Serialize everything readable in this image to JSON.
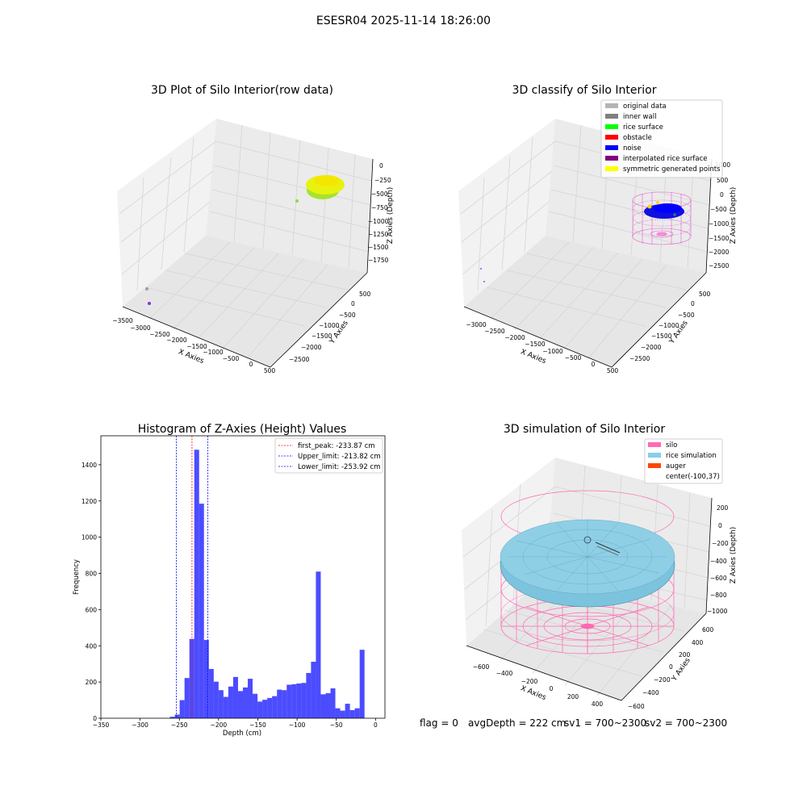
{
  "suptitle": "ESESR04 2025-11-14 18:26:00",
  "panel1": {
    "title": "3D Plot of Silo Interior(row data)",
    "xlabel": "X Axies",
    "ylabel": "Y Axies",
    "zlabel": "Z Axies (Depth)",
    "xticks": [
      "−3500",
      "−3000",
      "−2500",
      "−2000",
      "−1500",
      "−1000",
      "−500",
      "0",
      "500"
    ],
    "yticks": [
      "500",
      "0",
      "−500",
      "−1000",
      "−1500",
      "−2000",
      "−2500"
    ],
    "zticks": [
      "0",
      "−250",
      "−500",
      "−750",
      "−1000",
      "−1250",
      "−1500",
      "−1750"
    ]
  },
  "panel2": {
    "title": "3D classify of Silo Interior",
    "xlabel": "X Axies",
    "ylabel": "Y Axies",
    "zlabel": "Z Axies (Depth)",
    "xticks": [
      "−3000",
      "−2500",
      "−2000",
      "−1500",
      "−1000",
      "−500",
      "0",
      "500"
    ],
    "yticks": [
      "500",
      "0",
      "−500",
      "−1000",
      "−1500",
      "−2000",
      "−2500"
    ],
    "zticks": [
      "1000",
      "500",
      "0",
      "−500",
      "−1000",
      "−1500",
      "−2000",
      "−2500"
    ],
    "legend": [
      {
        "label": "original data",
        "color": "#b4b4b4"
      },
      {
        "label": "inner wall",
        "color": "#808080"
      },
      {
        "label": "rice surface",
        "color": "#00ff00"
      },
      {
        "label": "obstacle",
        "color": "#ff0000"
      },
      {
        "label": "noise",
        "color": "#0000ff"
      },
      {
        "label": "interpolated rice surface",
        "color": "#800080"
      },
      {
        "label": "symmetric generated points",
        "color": "#ffff00"
      }
    ]
  },
  "panel3": {
    "chart_data": {
      "type": "bar",
      "title": "Histogram of Z-Axies (Height) Values",
      "xlabel": "Depth (cm)",
      "ylabel": "Frequency",
      "xlim": [
        -350,
        12
      ],
      "ylim": [
        0,
        1560
      ],
      "xticks": [
        -350,
        -300,
        -250,
        -200,
        -150,
        -100,
        -50,
        0
      ],
      "yticks": [
        0,
        200,
        400,
        600,
        800,
        1000,
        1200,
        1400
      ],
      "bin_width": 6.2,
      "bins": [
        {
          "x": -262,
          "count": 8
        },
        {
          "x": -255.8,
          "count": 20
        },
        {
          "x": -249.6,
          "count": 100
        },
        {
          "x": -243.4,
          "count": 222
        },
        {
          "x": -237.2,
          "count": 438
        },
        {
          "x": -231.0,
          "count": 1483
        },
        {
          "x": -224.8,
          "count": 1185
        },
        {
          "x": -218.6,
          "count": 432
        },
        {
          "x": -212.4,
          "count": 272
        },
        {
          "x": -206.2,
          "count": 202
        },
        {
          "x": -200.0,
          "count": 155
        },
        {
          "x": -193.8,
          "count": 118
        },
        {
          "x": -187.6,
          "count": 175
        },
        {
          "x": -181.4,
          "count": 228
        },
        {
          "x": -175.2,
          "count": 150
        },
        {
          "x": -169.0,
          "count": 170
        },
        {
          "x": -162.8,
          "count": 218
        },
        {
          "x": -156.6,
          "count": 135
        },
        {
          "x": -150.4,
          "count": 92
        },
        {
          "x": -144.2,
          "count": 102
        },
        {
          "x": -138.0,
          "count": 112
        },
        {
          "x": -131.8,
          "count": 122
        },
        {
          "x": -125.6,
          "count": 158
        },
        {
          "x": -119.4,
          "count": 155
        },
        {
          "x": -113.2,
          "count": 185
        },
        {
          "x": -107.0,
          "count": 188
        },
        {
          "x": -100.8,
          "count": 192
        },
        {
          "x": -94.6,
          "count": 195
        },
        {
          "x": -88.4,
          "count": 250
        },
        {
          "x": -82.2,
          "count": 312
        },
        {
          "x": -76.0,
          "count": 810
        },
        {
          "x": -69.8,
          "count": 132
        },
        {
          "x": -63.6,
          "count": 138
        },
        {
          "x": -57.4,
          "count": 165
        },
        {
          "x": -51.2,
          "count": 55
        },
        {
          "x": -45.0,
          "count": 42
        },
        {
          "x": -38.8,
          "count": 80
        },
        {
          "x": -32.6,
          "count": 45
        },
        {
          "x": -26.4,
          "count": 55
        },
        {
          "x": -20.2,
          "count": 378
        }
      ],
      "bar_color": "#0000ff",
      "lines": [
        {
          "value": -233.87,
          "label": "first_peak: -233.87 cm",
          "color": "#ff0000"
        },
        {
          "value": -213.82,
          "label": "Upper_limit: -213.82 cm",
          "color": "#0000ff"
        },
        {
          "value": -253.92,
          "label": "Lower_limit: -253.92 cm",
          "color": "#0000ff"
        }
      ],
      "legend_position": "top-right"
    }
  },
  "panel4": {
    "title": "3D simulation of Silo Interior",
    "xlabel": "X Axies",
    "ylabel": "Y Axies",
    "zlabel": "Z Axies (Depth)",
    "xticks": [
      "−600",
      "−400",
      "−200",
      "0",
      "200",
      "400"
    ],
    "yticks": [
      "600",
      "400",
      "200",
      "0",
      "−200",
      "−400",
      "−600"
    ],
    "zticks": [
      "200",
      "0",
      "−200",
      "−400",
      "−600",
      "−800",
      "−1000"
    ],
    "legend": [
      {
        "label": "silo",
        "color": "#ff69b4"
      },
      {
        "label": "rice simulation",
        "color": "#87ceeb"
      },
      {
        "label": "auger",
        "color": "#ff4500"
      },
      {
        "label": "center(-100,37)",
        "color": ""
      }
    ]
  },
  "footer": {
    "flag": "flag = 0",
    "avg": "avgDepth = 222 cm",
    "sv1": "sv1 = 700~2300",
    "sv2": "sv2 = 700~2300"
  },
  "colors": {
    "pane": "#f2f2f2",
    "grid": "#d9d9d9"
  }
}
